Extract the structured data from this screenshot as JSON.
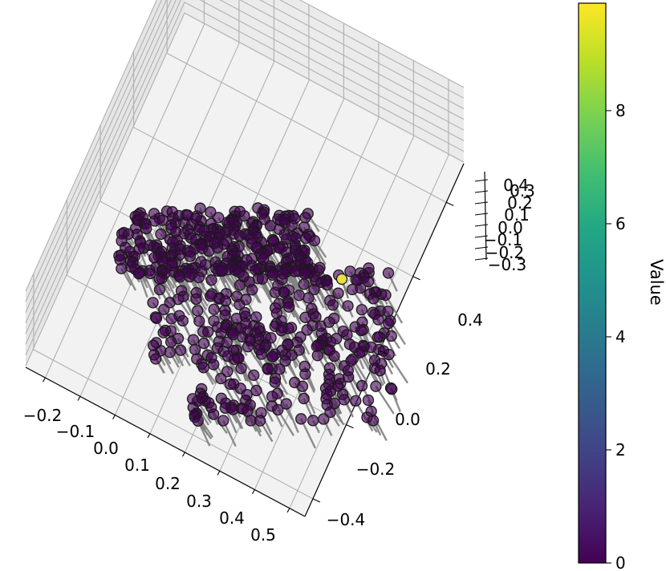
{
  "chart_data": {
    "type": "scatter",
    "projection": "3d",
    "grid": true,
    "x_ticks": [
      "−0.2",
      "−0.1",
      "0.0",
      "0.1",
      "0.2",
      "0.3",
      "0.4",
      "0.5"
    ],
    "y_ticks": [
      "−0.4",
      "−0.2",
      "0.0",
      "0.2",
      "0.4"
    ],
    "z_ticks": [
      "−0.3",
      "−0.2",
      "−0.1",
      "0.0",
      "0.1",
      "0.2",
      "0.3",
      "0.4"
    ],
    "xlim": [
      -0.27,
      0.56
    ],
    "ylim": [
      -0.45,
      0.5
    ],
    "zlim": [
      -0.32,
      0.42
    ],
    "colorbar": {
      "label": "Value",
      "ticks": [
        "0",
        "2",
        "4",
        "6",
        "8"
      ],
      "range": [
        0,
        9.9
      ],
      "colormap": "viridis"
    },
    "marker_color": "#440154",
    "highlight_color": "#e8e045",
    "stem_color": "#808080",
    "point_count": 600,
    "outlier": {
      "x": 0.38,
      "y": 0.28,
      "z": 0.05,
      "value": 9.9
    }
  }
}
